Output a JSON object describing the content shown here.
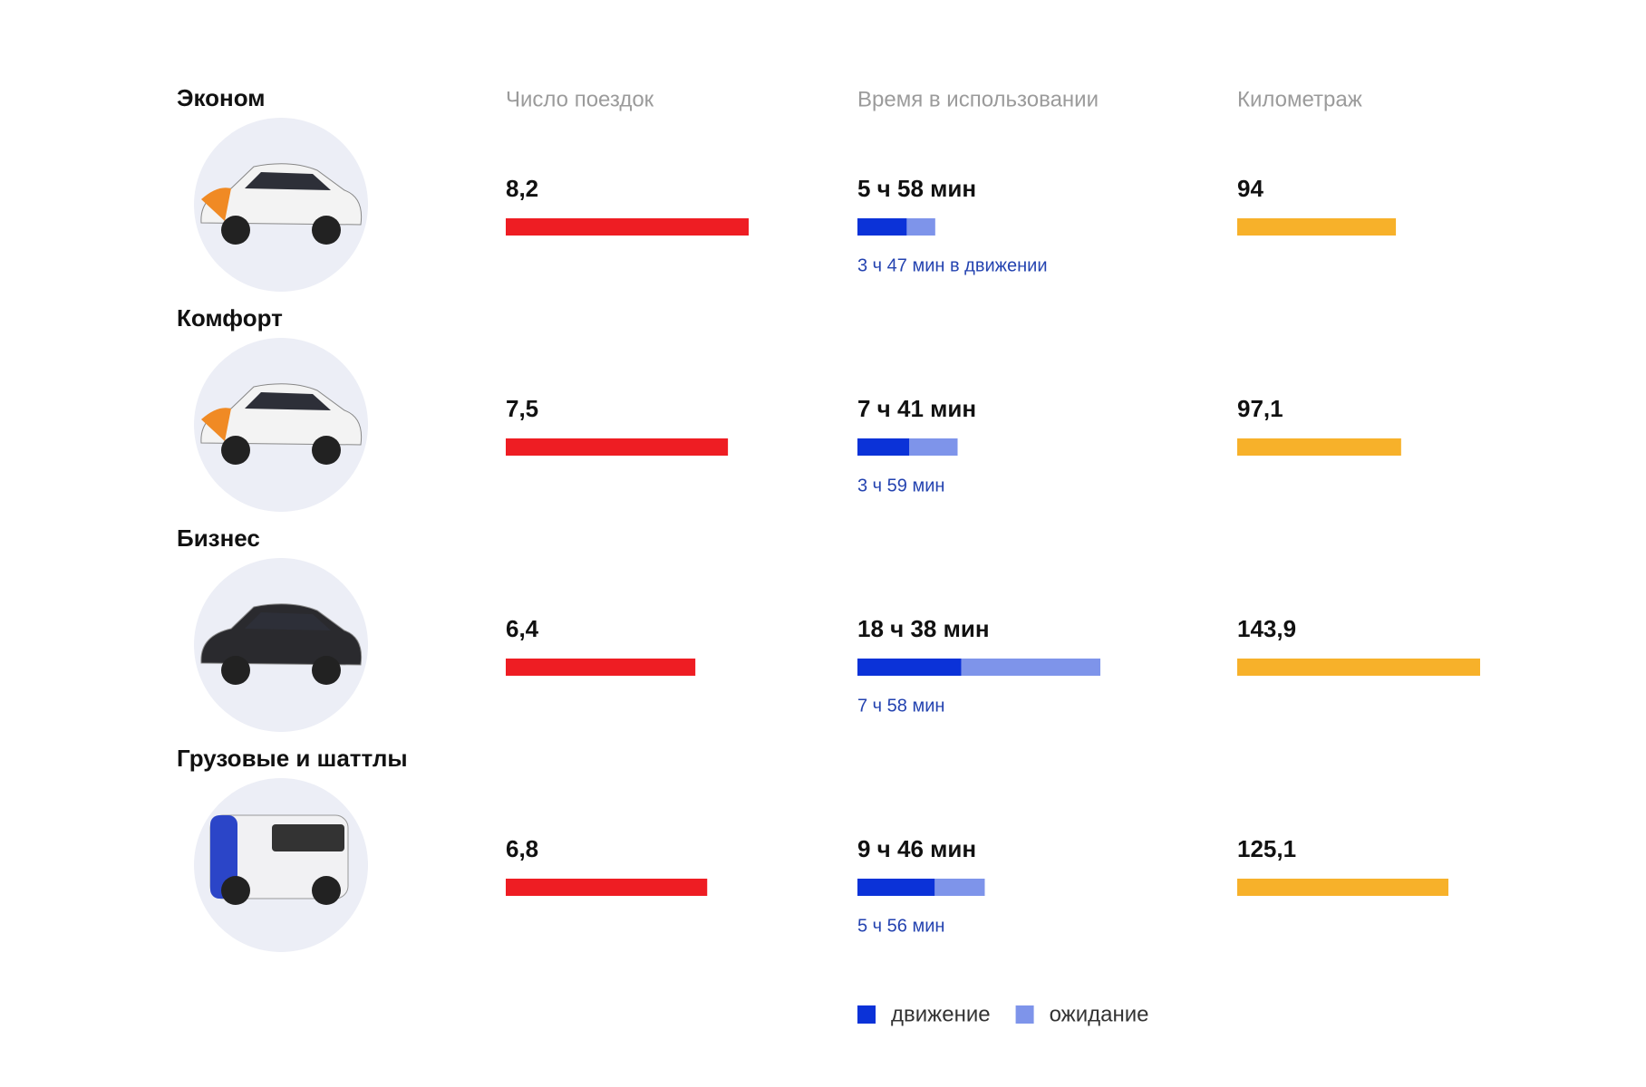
{
  "chart_data": {
    "type": "bar",
    "categories": [
      "Эконом",
      "Комфорт",
      "Бизнес",
      "Грузовые и шаттлы"
    ],
    "trips": {
      "title": "Число поездок",
      "color": "#ee1d23",
      "values": [
        8.2,
        7.5,
        6.4,
        6.8
      ],
      "value_labels": [
        "8,2",
        "7,5",
        "6,4",
        "6,8"
      ]
    },
    "time": {
      "title": "Время в использовании",
      "totals": {
        "values": [
          358,
          461,
          1118,
          586
        ],
        "value_labels": [
          "5 ч 58 мин",
          "7 ч 41 мин",
          "18 ч 38 мин",
          "9 ч 46 мин"
        ]
      },
      "series": [
        {
          "name": "движение",
          "color": "#0b32d8",
          "values": [
            227,
            239,
            478,
            356
          ],
          "value_labels": [
            "3 ч 47 мин в движении",
            "3 ч 59 мин",
            "7 ч 58 мин",
            "5 ч 56 мин"
          ]
        },
        {
          "name": "ожидание",
          "color": "#7e94ea",
          "values": [
            131,
            222,
            640,
            230
          ]
        }
      ]
    },
    "mileage": {
      "title": "Километраж",
      "color": "#f7b12a",
      "values": [
        94,
        97.1,
        143.9,
        125.1
      ],
      "value_labels": [
        "94",
        "97,1",
        "143,9",
        "125,1"
      ]
    }
  }
}
